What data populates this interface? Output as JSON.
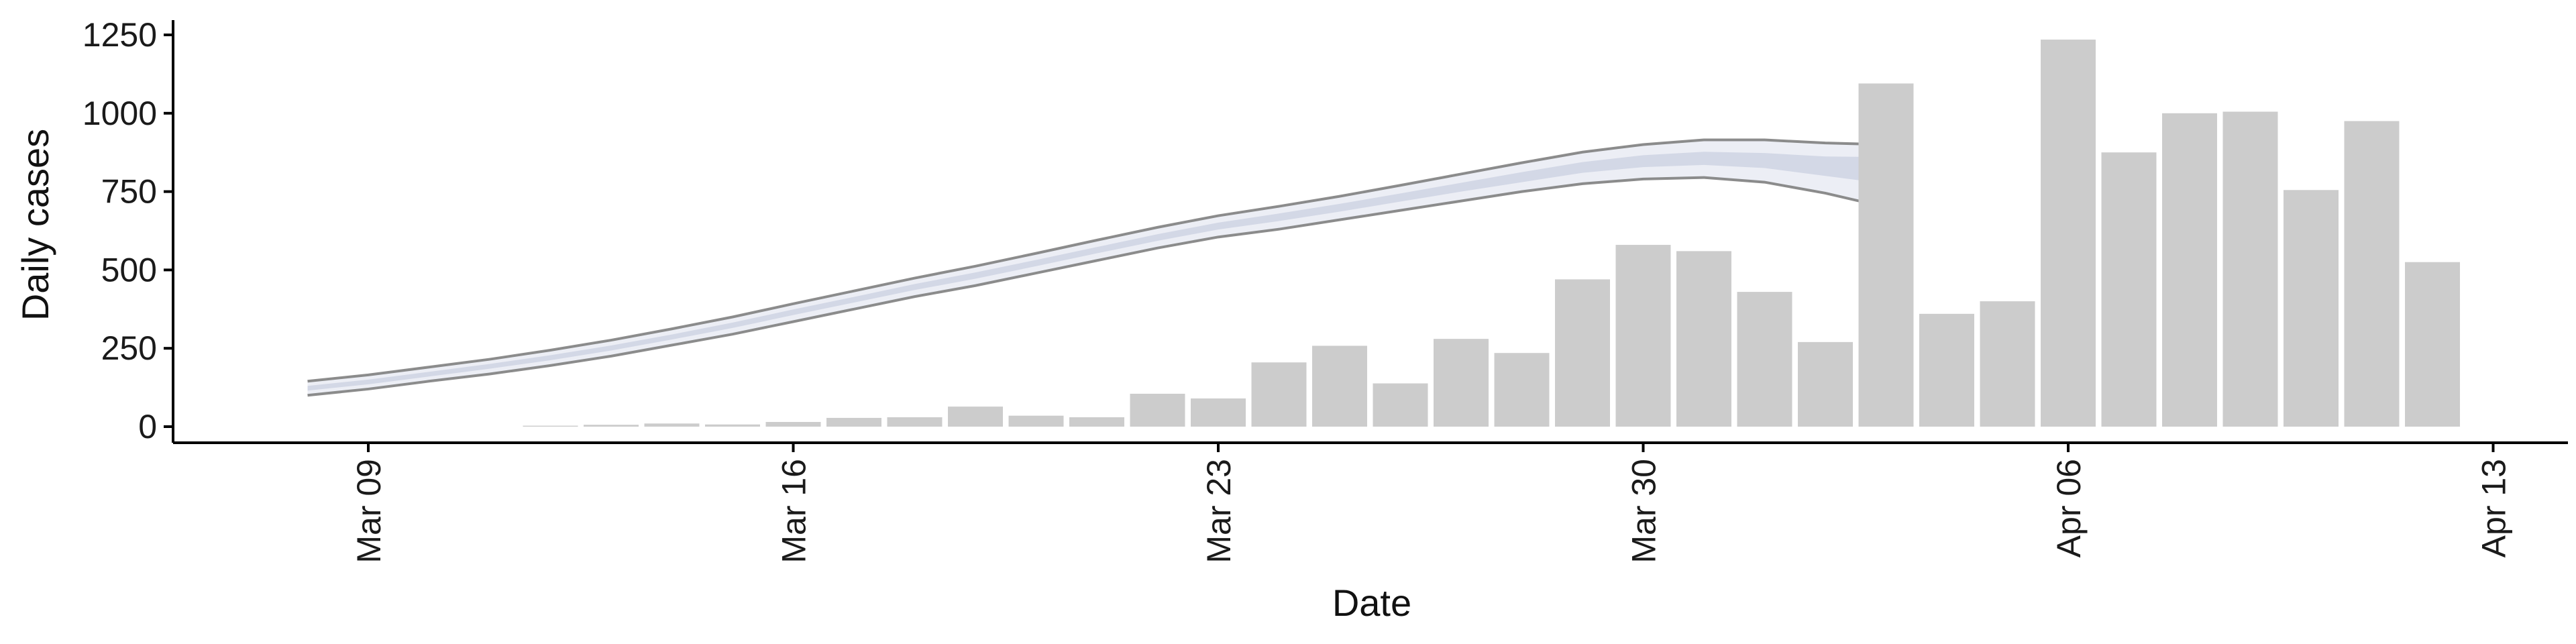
{
  "chart_data": {
    "type": "bar",
    "xlabel": "Date",
    "ylabel": "Daily cases",
    "ylim": [
      -50,
      1300
    ],
    "yticks": [
      0,
      250,
      500,
      750,
      1000,
      1250
    ],
    "xticks": [
      {
        "date": "2020-03-09",
        "label": "Mar 09"
      },
      {
        "date": "2020-03-16",
        "label": "Mar 16"
      },
      {
        "date": "2020-03-23",
        "label": "Mar 23"
      },
      {
        "date": "2020-03-30",
        "label": "Mar 30"
      },
      {
        "date": "2020-04-06",
        "label": "Apr 06"
      },
      {
        "date": "2020-04-13",
        "label": "Apr 13"
      }
    ],
    "grid": false,
    "colors": {
      "bars": "#cccccc",
      "axis": "#000000",
      "band_outer": "#e9ebf3",
      "band_inner": "#d0d5e4",
      "band_line": "#7f7f7f"
    },
    "series": [
      {
        "type": "bar",
        "dates": [
          "2020-03-12",
          "2020-03-13",
          "2020-03-14",
          "2020-03-15",
          "2020-03-16",
          "2020-03-17",
          "2020-03-18",
          "2020-03-19",
          "2020-03-20",
          "2020-03-21",
          "2020-03-22",
          "2020-03-23",
          "2020-03-24",
          "2020-03-25",
          "2020-03-26",
          "2020-03-27",
          "2020-03-28",
          "2020-03-29",
          "2020-03-30",
          "2020-03-31",
          "2020-04-01",
          "2020-04-02",
          "2020-04-03",
          "2020-04-04",
          "2020-04-05",
          "2020-04-06",
          "2020-04-07",
          "2020-04-08",
          "2020-04-09",
          "2020-04-10",
          "2020-04-11",
          "2020-04-12"
        ],
        "values": [
          3,
          6,
          10,
          7,
          15,
          28,
          30,
          64,
          35,
          30,
          105,
          90,
          205,
          258,
          138,
          280,
          235,
          470,
          580,
          560,
          430,
          270,
          1095,
          360,
          400,
          1235,
          875,
          1000,
          1005,
          755,
          975,
          525
        ]
      },
      {
        "type": "band",
        "dates": [
          "2020-03-08",
          "2020-03-09",
          "2020-03-10",
          "2020-03-11",
          "2020-03-12",
          "2020-03-13",
          "2020-03-14",
          "2020-03-15",
          "2020-03-16",
          "2020-03-17",
          "2020-03-18",
          "2020-03-19",
          "2020-03-20",
          "2020-03-21",
          "2020-03-22",
          "2020-03-23",
          "2020-03-24",
          "2020-03-25",
          "2020-03-26",
          "2020-03-27",
          "2020-03-28",
          "2020-03-29",
          "2020-03-30",
          "2020-03-31",
          "2020-04-01",
          "2020-04-02",
          "2020-04-03"
        ],
        "lower": [
          100,
          120,
          145,
          168,
          195,
          225,
          260,
          295,
          335,
          375,
          415,
          450,
          490,
          530,
          570,
          605,
          630,
          660,
          690,
          720,
          750,
          775,
          790,
          795,
          780,
          745,
          700
        ],
        "inner_lower": [
          115,
          135,
          160,
          185,
          212,
          243,
          278,
          315,
          356,
          396,
          436,
          472,
          512,
          553,
          593,
          629,
          656,
          686,
          718,
          750,
          780,
          810,
          828,
          835,
          825,
          800,
          775
        ],
        "center": [
          122,
          142,
          167,
          192,
          220,
          251,
          286,
          324,
          365,
          405,
          445,
          482,
          522,
          563,
          603,
          640,
          668,
          698,
          730,
          763,
          795,
          826,
          846,
          855,
          848,
          830,
          815
        ],
        "inner_upper": [
          130,
          150,
          175,
          200,
          228,
          259,
          294,
          332,
          374,
          414,
          455,
          492,
          532,
          573,
          614,
          651,
          680,
          711,
          744,
          778,
          812,
          844,
          866,
          877,
          873,
          862,
          860
        ],
        "upper": [
          145,
          165,
          190,
          215,
          244,
          276,
          312,
          350,
          392,
          433,
          474,
          512,
          553,
          595,
          636,
          673,
          703,
          735,
          770,
          806,
          842,
          876,
          900,
          915,
          915,
          905,
          900
        ]
      }
    ]
  }
}
